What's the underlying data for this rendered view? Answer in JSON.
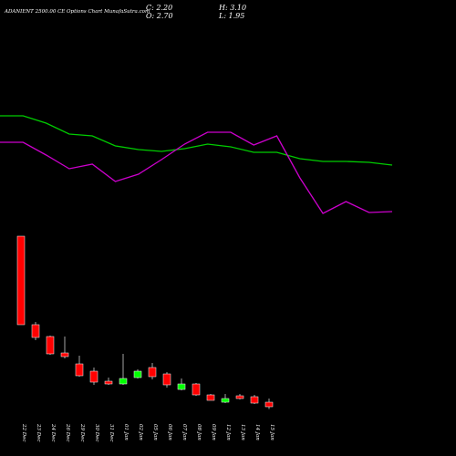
{
  "chart_data": {
    "type": "candlestick",
    "title": "ADANIENT 2500.00  CE Options  Chart MunafaSutra.com",
    "header": [
      "C: 2.20",
      "H: 3.10",
      "O: 2.70",
      "L: 1.95"
    ],
    "categories": [
      "22 Dec",
      "23 Dec",
      "24 Dec",
      "26 Dec",
      "29 Dec",
      "30 Dec",
      "31 Dec",
      "01 Jan",
      "02 Jan",
      "05 Jan",
      "06 Jan",
      "07 Jan",
      "08 Jan",
      "09 Jan",
      "12 Jan",
      "13 Jan",
      "14 Jan",
      "15 Jan"
    ],
    "open": [
      20.9,
      11.2,
      9.9,
      8.1,
      6.9,
      6.1,
      5.0,
      4.7,
      5.4,
      6.5,
      5.8,
      4.1,
      4.7,
      3.5,
      2.7,
      3.4,
      3.3,
      2.7
    ],
    "high": [
      20.9,
      11.5,
      10.0,
      9.9,
      7.8,
      6.5,
      5.4,
      8.0,
      6.3,
      7.0,
      6.0,
      5.3,
      4.8,
      3.6,
      3.6,
      3.6,
      3.5,
      3.1
    ],
    "low": [
      11.2,
      9.5,
      7.9,
      7.5,
      5.5,
      4.6,
      4.6,
      4.6,
      5.3,
      5.2,
      4.3,
      4.0,
      3.4,
      2.9,
      2.6,
      3.0,
      2.5,
      1.95
    ],
    "close": [
      11.2,
      9.8,
      8.0,
      7.7,
      5.6,
      4.9,
      4.7,
      5.3,
      6.1,
      5.5,
      4.6,
      4.7,
      3.5,
      2.9,
      3.1,
      3.1,
      2.6,
      2.2
    ],
    "up_color": "#00ff00",
    "down_color": "#ff0000",
    "ylim": [
      -3.2,
      46.8
    ],
    "y2lim": [
      0,
      500
    ],
    "series": [
      {
        "axis": "y2",
        "color": "#00cc00",
        "values": [
          373,
          373,
          365,
          353,
          351,
          340,
          336,
          334,
          337,
          342,
          339,
          333,
          333,
          326,
          323,
          323,
          322,
          319
        ]
      },
      {
        "axis": "y2",
        "color": "#cc00cc",
        "values": [
          344,
          344,
          330,
          315,
          320,
          301,
          309,
          325,
          342,
          355,
          355,
          341,
          351,
          305,
          266,
          279,
          267,
          268
        ]
      }
    ]
  }
}
